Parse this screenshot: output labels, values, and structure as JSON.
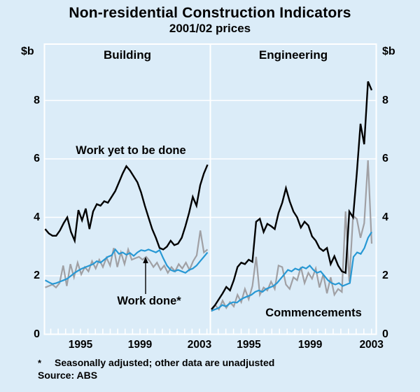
{
  "title": "Non-residential Construction Indicators",
  "subtitle": "2001/02 prices",
  "y_axis": {
    "unit_left": "$b",
    "unit_right": "$b",
    "ticks": [
      0,
      2,
      4,
      6,
      8
    ]
  },
  "annotations": {
    "work_yet_label": "Work yet to be done",
    "work_done_label": "Work done*",
    "commencements_label": "Commencements"
  },
  "footnote": {
    "marker": "*",
    "text": "Seasonally adjusted; other data are unadjusted",
    "source": "Source: ABS"
  },
  "colors": {
    "background": "#dbecf8",
    "grid": "#ffffff",
    "work_yet": "#000000",
    "work_done": "#2798d4",
    "commencements": "#a0a0a4"
  },
  "chart_data": [
    {
      "type": "line",
      "title": "Building",
      "x_unit": "quarterly",
      "x_range": [
        1992.5,
        2003.5
      ],
      "x_tick_labels": [
        "1995",
        "1999",
        "2003"
      ],
      "ylabel": "$b",
      "ylim": [
        0,
        9.9
      ],
      "yticks": [
        0,
        2,
        4,
        6,
        8
      ],
      "grid": true,
      "series": [
        {
          "name": "Work yet to be done",
          "color": "#000000",
          "values": [
            3.6,
            3.45,
            3.37,
            3.37,
            3.55,
            3.8,
            4.0,
            3.5,
            3.2,
            4.25,
            3.9,
            4.3,
            3.6,
            4.2,
            4.45,
            4.4,
            4.55,
            4.5,
            4.7,
            4.9,
            5.2,
            5.5,
            5.75,
            5.6,
            5.4,
            5.2,
            4.85,
            4.4,
            4.0,
            3.6,
            3.3,
            2.95,
            2.9,
            3.0,
            3.2,
            3.05,
            3.1,
            3.3,
            3.7,
            4.15,
            4.7,
            4.4,
            5.1,
            5.5,
            5.8
          ]
        },
        {
          "name": "Work done (seasonally adjusted)",
          "color": "#2798d4",
          "values": [
            1.85,
            1.78,
            1.72,
            1.75,
            1.8,
            1.85,
            1.9,
            2.0,
            2.1,
            2.18,
            2.25,
            2.3,
            2.35,
            2.4,
            2.5,
            2.45,
            2.55,
            2.65,
            2.7,
            2.9,
            2.75,
            2.8,
            2.72,
            2.78,
            2.68,
            2.8,
            2.88,
            2.85,
            2.9,
            2.85,
            2.8,
            2.88,
            2.6,
            2.35,
            2.2,
            2.15,
            2.2,
            2.15,
            2.1,
            2.2,
            2.25,
            2.35,
            2.5,
            2.65,
            2.8
          ]
        },
        {
          "name": "Commencements",
          "color": "#a0a0a4",
          "values": [
            1.6,
            1.65,
            1.7,
            1.6,
            1.75,
            2.35,
            1.65,
            2.4,
            1.95,
            2.45,
            2.05,
            2.3,
            2.15,
            2.5,
            2.25,
            2.55,
            2.3,
            2.62,
            2.35,
            2.95,
            2.3,
            2.8,
            2.4,
            2.9,
            2.55,
            2.6,
            2.65,
            2.55,
            2.65,
            2.5,
            2.3,
            2.45,
            2.2,
            2.35,
            2.1,
            2.3,
            2.15,
            2.4,
            2.25,
            2.45,
            2.2,
            2.5,
            2.7,
            3.55,
            2.8,
            2.9
          ]
        }
      ]
    },
    {
      "type": "line",
      "title": "Engineering",
      "x_unit": "quarterly",
      "x_range": [
        1992.6,
        2003.2
      ],
      "x_tick_labels": [
        "1995",
        "1999",
        "2003"
      ],
      "ylabel": "$b",
      "ylim": [
        0,
        9.9
      ],
      "yticks": [
        0,
        2,
        4,
        6,
        8
      ],
      "grid": true,
      "series": [
        {
          "name": "Work yet to be done",
          "color": "#000000",
          "values": [
            0.85,
            1.0,
            1.2,
            1.4,
            1.62,
            1.5,
            1.85,
            2.3,
            2.45,
            2.4,
            2.55,
            2.48,
            3.85,
            3.95,
            3.5,
            3.78,
            3.7,
            3.6,
            4.15,
            4.5,
            5.0,
            4.55,
            4.2,
            4.0,
            3.65,
            3.85,
            3.72,
            3.35,
            3.2,
            2.95,
            2.85,
            2.95,
            2.4,
            2.67,
            2.35,
            2.15,
            2.1,
            4.2,
            4.0,
            5.5,
            7.2,
            6.5,
            8.65,
            8.35
          ]
        },
        {
          "name": "Work done (seasonally adjusted)",
          "color": "#2798d4",
          "values": [
            0.8,
            0.85,
            0.9,
            1.0,
            0.95,
            1.05,
            1.1,
            1.08,
            1.18,
            1.25,
            1.3,
            1.35,
            1.45,
            1.5,
            1.45,
            1.55,
            1.6,
            1.65,
            1.75,
            1.9,
            2.05,
            2.2,
            2.15,
            2.25,
            2.2,
            2.3,
            2.25,
            2.35,
            2.2,
            2.1,
            2.15,
            2.0,
            1.85,
            1.75,
            1.7,
            1.75,
            1.65,
            1.7,
            1.75,
            2.65,
            2.8,
            2.75,
            2.95,
            3.3,
            3.5
          ]
        },
        {
          "name": "Commencements",
          "color": "#a0a0a4",
          "values": [
            0.78,
            1.0,
            0.85,
            1.15,
            0.9,
            1.1,
            0.95,
            1.35,
            1.1,
            1.55,
            1.2,
            1.65,
            2.65,
            1.35,
            1.6,
            1.5,
            1.8,
            1.55,
            2.35,
            2.3,
            1.7,
            1.55,
            1.95,
            1.85,
            2.3,
            1.75,
            2.1,
            1.9,
            2.25,
            1.6,
            2.05,
            1.4,
            1.95,
            1.35,
            1.55,
            1.45,
            4.2,
            1.8,
            4.05,
            3.95,
            3.3,
            3.8,
            5.95,
            3.1
          ]
        }
      ]
    }
  ]
}
